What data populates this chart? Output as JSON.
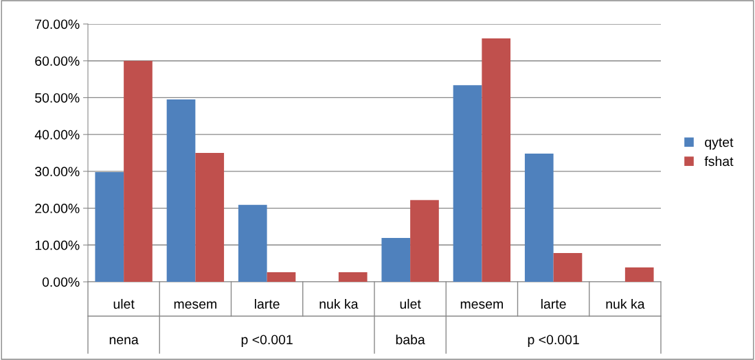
{
  "chart_data": {
    "type": "bar",
    "categories": [
      "ulet",
      "mesem",
      "larte",
      "nuk ka",
      "ulet",
      "mesem",
      "larte",
      "nuk ka"
    ],
    "series": [
      {
        "name": "qytet",
        "color": "#4f81bd",
        "values": [
          29.8,
          49.5,
          20.9,
          0,
          11.9,
          53.4,
          34.8,
          0
        ]
      },
      {
        "name": "fshat",
        "color": "#c0504d",
        "values": [
          60.0,
          35.0,
          2.6,
          2.6,
          22.2,
          66.1,
          7.8,
          3.9
        ]
      }
    ],
    "ylim": [
      0,
      70
    ],
    "yticks": [
      {
        "value": 0,
        "label": "0.00%"
      },
      {
        "value": 10,
        "label": "10.00%"
      },
      {
        "value": 20,
        "label": "20.00%"
      },
      {
        "value": 30,
        "label": "30.00%"
      },
      {
        "value": 40,
        "label": "40.00%"
      },
      {
        "value": 50,
        "label": "50.00%"
      },
      {
        "value": 60,
        "label": "60.00%"
      },
      {
        "value": 70,
        "label": "70.00%"
      }
    ],
    "annotations": [
      "nena",
      "p <0.001",
      "baba",
      "p <0.001"
    ],
    "grid": "y",
    "legend": "right"
  }
}
